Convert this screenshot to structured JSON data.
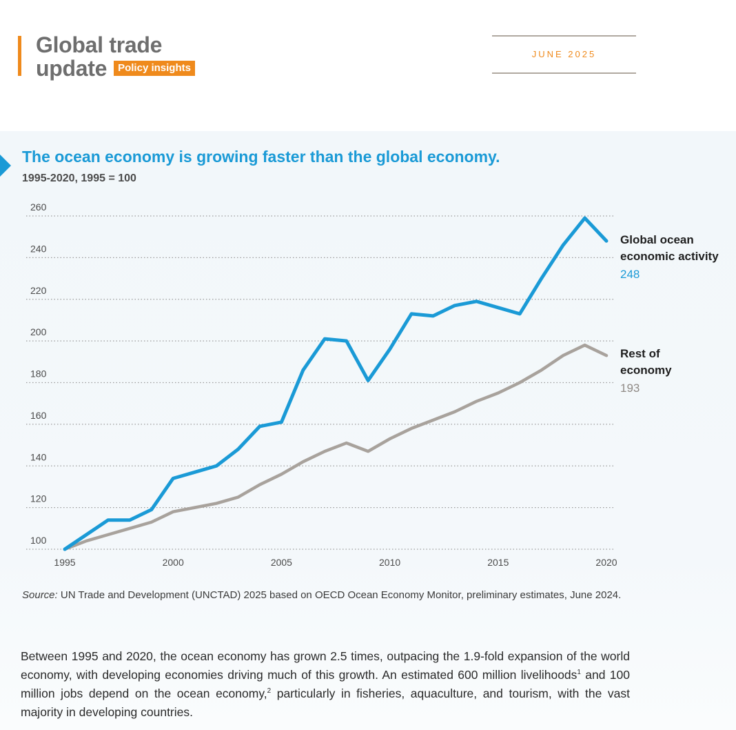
{
  "header": {
    "title_line1": "Global trade",
    "title_line2": "update",
    "badge": "Policy insights",
    "date": "JUNE  2025"
  },
  "colors": {
    "accent": "#ef8a1c",
    "ocean_series": "#1a9ad6",
    "rest_series": "#a8a29c",
    "panel_bg": "#f2f7fa"
  },
  "chart_data": {
    "type": "line",
    "title": "The ocean economy is growing faster than the global economy.",
    "subtitle": "1995-2020, 1995 = 100",
    "xlabel": "",
    "ylabel": "",
    "xlim": [
      1995,
      2020
    ],
    "ylim": [
      100,
      260
    ],
    "x_ticks": [
      "1995",
      "2000",
      "2005",
      "2010",
      "2015",
      "2020"
    ],
    "y_ticks": [
      "100",
      "120",
      "140",
      "160",
      "180",
      "200",
      "220",
      "240",
      "260"
    ],
    "grid": "horizontal dotted",
    "legend": "direct labels at right end of lines",
    "x": [
      1995,
      1996,
      1997,
      1998,
      1999,
      2000,
      2001,
      2002,
      2003,
      2004,
      2005,
      2006,
      2007,
      2008,
      2009,
      2010,
      2011,
      2012,
      2013,
      2014,
      2015,
      2016,
      2017,
      2018,
      2019,
      2020
    ],
    "series": [
      {
        "name": "Global ocean economic activity",
        "end_label": "248",
        "values": [
          100,
          107,
          114,
          114,
          119,
          134,
          137,
          140,
          148,
          159,
          161,
          186,
          201,
          200,
          181,
          196,
          213,
          212,
          217,
          219,
          216,
          213,
          230,
          246,
          259,
          248
        ]
      },
      {
        "name": "Rest of economy",
        "end_label": "193",
        "values": [
          100,
          104,
          107,
          110,
          113,
          118,
          120,
          122,
          125,
          131,
          136,
          142,
          147,
          151,
          147,
          153,
          158,
          162,
          166,
          171,
          175,
          180,
          186,
          193,
          198,
          193
        ]
      }
    ]
  },
  "labels": {
    "ocean_line1": "Global ocean",
    "ocean_line2": "economic activity",
    "ocean_value": "248",
    "rest_line1": "Rest of",
    "rest_line2": "economy",
    "rest_value": "193"
  },
  "source": {
    "prefix": "Source:",
    "text": " UN Trade and Development (UNCTAD) 2025 based on OECD Ocean Economy Monitor, preliminary estimates, June 2024."
  },
  "body": {
    "part1": "Between 1995 and 2020, the ocean economy has grown 2.5 times, outpacing the 1.9-fold expansion of the world economy, with developing economies driving much of this growth. An estimated 600 million livelihoods",
    "sup1": "1",
    "part2": " and 100 million jobs depend on the ocean economy,",
    "sup2": "2",
    "part3": " particularly in fisheries, aquaculture, and tourism, with the vast majority in developing countries."
  }
}
